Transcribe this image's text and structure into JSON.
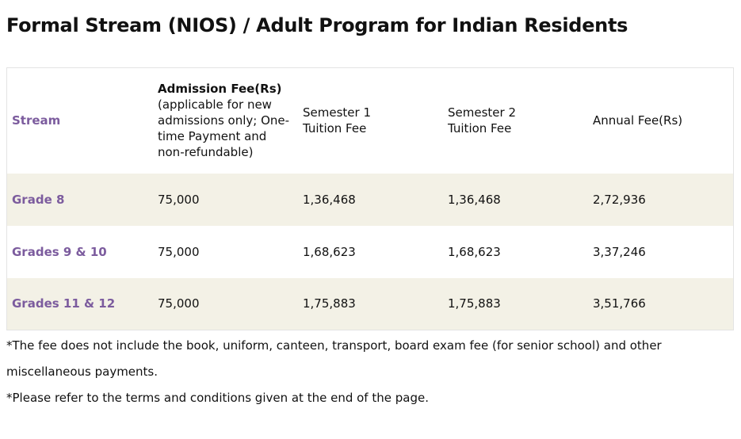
{
  "header": {
    "title": "Formal Stream (NIOS) / Adult Program for Indian Residents"
  },
  "table": {
    "columns": [
      {
        "title": "Stream"
      },
      {
        "title": "Admission Fee(Rs)",
        "subtitle": "(applicable for new admissions only; One-time Payment and non-refundable)"
      },
      {
        "title": "Semester 1 Tuition Fee"
      },
      {
        "title": "Semester 2 Tuition Fee"
      },
      {
        "title": "Annual Fee(Rs)"
      }
    ],
    "rows": [
      [
        "Grade 8",
        "75,000",
        "1,36,468",
        "1,36,468",
        "2,72,936"
      ],
      [
        "Grades 9 & 10",
        "75,000",
        "1,68,623",
        "1,68,623",
        "3,37,246"
      ],
      [
        "Grades 11 & 12",
        "75,000",
        "1,75,883",
        "1,75,883",
        "3,51,766"
      ]
    ]
  },
  "notes": [
    "*The fee does not include the book, uniform, canteen, transport, board exam fee (for senior school) and other miscellaneous payments.",
    "*Please refer to the terms and conditions given at the end of the page."
  ]
}
